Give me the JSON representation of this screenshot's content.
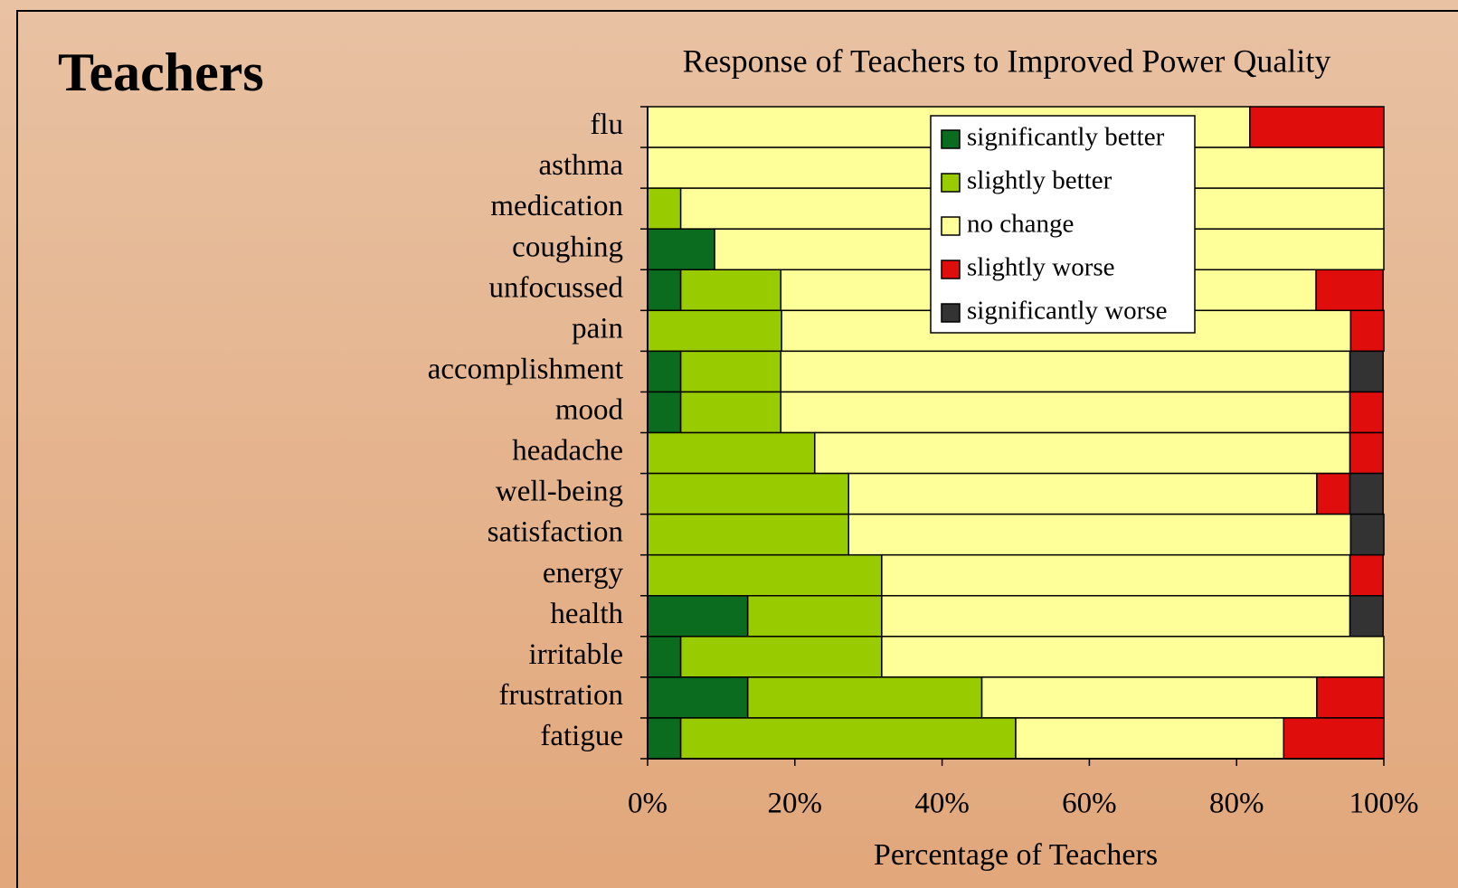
{
  "slide_title": "Teachers",
  "chart_data": {
    "type": "stacked-barh",
    "title": "Response of Teachers to Improved Power Quality",
    "x_label": "Percentage of Teachers",
    "categories": [
      "flu",
      "asthma",
      "medication",
      "coughing",
      "unfocussed",
      "pain",
      "accomplishment",
      "mood",
      "headache",
      "well-being",
      "satisfaction",
      "energy",
      "health",
      "irritable",
      "frustration",
      "fatigue"
    ],
    "series": [
      {
        "name": "significantly better",
        "color": "#0b6b1f",
        "values": [
          0,
          0,
          0,
          9.1,
          4.5,
          0,
          4.5,
          4.5,
          0,
          0,
          0,
          0,
          13.6,
          4.5,
          13.6,
          4.5
        ]
      },
      {
        "name": "slightly better",
        "color": "#99cc00",
        "values": [
          0,
          0,
          4.5,
          0,
          13.6,
          18.2,
          13.6,
          13.6,
          22.7,
          27.3,
          27.3,
          31.8,
          18.2,
          27.3,
          31.8,
          45.5
        ]
      },
      {
        "name": "no change",
        "color": "#ffff99",
        "values": [
          81.8,
          100,
          95.5,
          90.9,
          72.7,
          77.3,
          77.3,
          77.3,
          72.7,
          63.6,
          68.2,
          63.6,
          63.6,
          68.2,
          45.5,
          36.4
        ]
      },
      {
        "name": "slightly worse",
        "color": "#e00d0d",
        "values": [
          18.2,
          0,
          0,
          0,
          9.1,
          4.5,
          0,
          4.5,
          4.5,
          4.5,
          0,
          4.5,
          0,
          0,
          9.1,
          13.6
        ]
      },
      {
        "name": "significantly worse",
        "color": "#333333",
        "values": [
          0,
          0,
          0,
          0,
          0,
          0,
          4.5,
          0,
          0,
          4.5,
          4.5,
          0,
          4.5,
          0,
          0,
          0
        ]
      }
    ],
    "xlim": [
      0,
      100
    ],
    "xticks": [
      {
        "value": 0,
        "label": "0%"
      },
      {
        "value": 20,
        "label": "20%"
      },
      {
        "value": 40,
        "label": "40%"
      },
      {
        "value": 60,
        "label": "60%"
      },
      {
        "value": 80,
        "label": "80%"
      },
      {
        "value": 100,
        "label": "100%"
      }
    ]
  }
}
